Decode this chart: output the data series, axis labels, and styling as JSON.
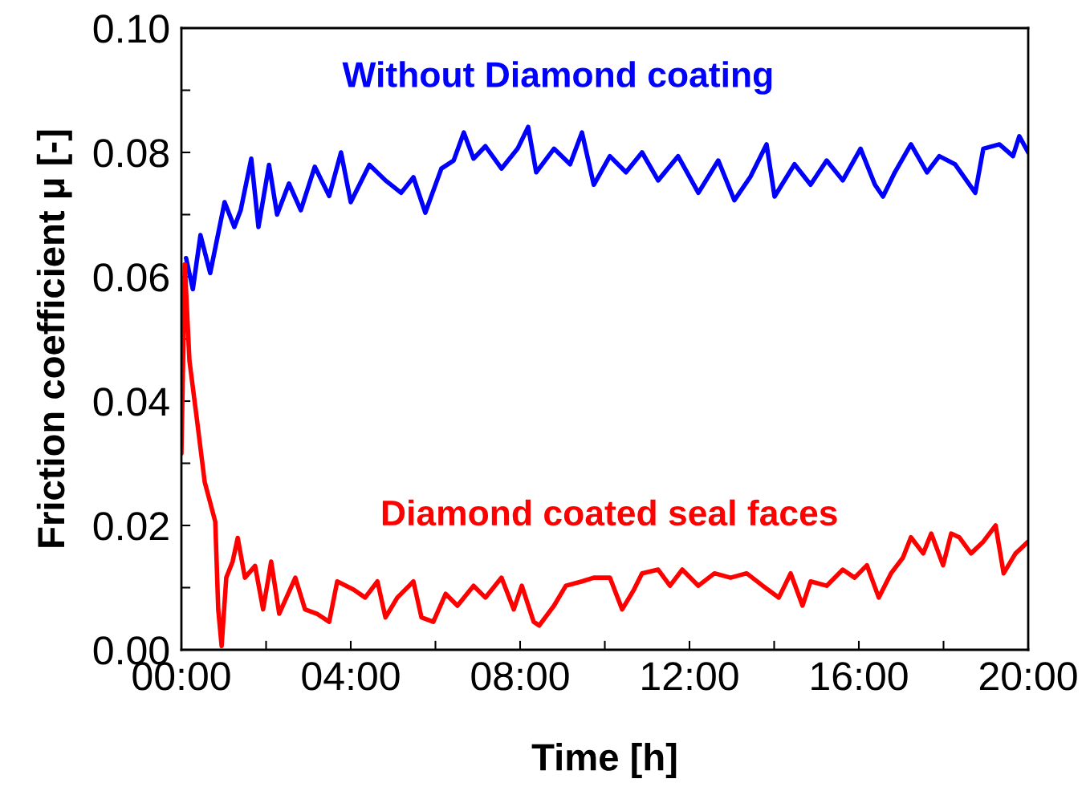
{
  "chart_data": {
    "type": "line",
    "xlabel": "Time [h]",
    "ylabel": "Friction coefficient μ [-]",
    "xlim": [
      0,
      20
    ],
    "ylim": [
      0,
      0.1
    ],
    "xticks": [
      {
        "value": 0,
        "label": "00:00"
      },
      {
        "value": 2,
        "label": null
      },
      {
        "value": 4,
        "label": "04:00"
      },
      {
        "value": 6,
        "label": null
      },
      {
        "value": 8,
        "label": "08:00"
      },
      {
        "value": 10,
        "label": null
      },
      {
        "value": 12,
        "label": "12:00"
      },
      {
        "value": 14,
        "label": null
      },
      {
        "value": 16,
        "label": "16:00"
      },
      {
        "value": 18,
        "label": null
      },
      {
        "value": 20,
        "label": "20:00"
      }
    ],
    "yticks": [
      {
        "value": 0,
        "label": "0.00"
      },
      {
        "value": 0.01,
        "label": null
      },
      {
        "value": 0.02,
        "label": "0.02"
      },
      {
        "value": 0.03,
        "label": null
      },
      {
        "value": 0.04,
        "label": "0.04"
      },
      {
        "value": 0.05,
        "label": null
      },
      {
        "value": 0.06,
        "label": "0.06"
      },
      {
        "value": 0.07,
        "label": null
      },
      {
        "value": 0.08,
        "label": "0.08"
      },
      {
        "value": 0.09,
        "label": null
      },
      {
        "value": 0.1,
        "label": "0.10"
      }
    ],
    "grid": false,
    "legend": false,
    "marker": "none",
    "line_style": "solid",
    "series": [
      {
        "name": "Without Diamond coating",
        "color": "#0000ff",
        "x": [
          0.11,
          0.27,
          0.45,
          0.68,
          1.02,
          1.25,
          1.4,
          1.65,
          1.82,
          2.07,
          2.26,
          2.54,
          2.82,
          3.15,
          3.49,
          3.77,
          4.0,
          4.44,
          4.82,
          5.19,
          5.48,
          5.76,
          6.14,
          6.43,
          6.67,
          6.9,
          7.18,
          7.56,
          7.94,
          8.19,
          8.38,
          8.8,
          9.18,
          9.46,
          9.74,
          10.12,
          10.5,
          10.88,
          11.26,
          11.73,
          12.21,
          12.68,
          13.06,
          13.44,
          13.82,
          14.01,
          14.48,
          14.86,
          15.24,
          15.62,
          16.04,
          16.38,
          16.57,
          16.85,
          17.23,
          17.61,
          17.9,
          18.27,
          18.75,
          18.94,
          19.32,
          19.64,
          19.79,
          20.0
        ],
        "values": [
          0.063,
          0.058,
          0.0667,
          0.0606,
          0.072,
          0.068,
          0.0707,
          0.079,
          0.068,
          0.078,
          0.07,
          0.075,
          0.0707,
          0.0777,
          0.073,
          0.08,
          0.072,
          0.078,
          0.0755,
          0.0735,
          0.076,
          0.0703,
          0.0774,
          0.0787,
          0.0832,
          0.079,
          0.081,
          0.0774,
          0.0806,
          0.0841,
          0.0768,
          0.0806,
          0.0781,
          0.0832,
          0.0748,
          0.0794,
          0.0768,
          0.08,
          0.0755,
          0.0794,
          0.0735,
          0.0787,
          0.0723,
          0.0761,
          0.0813,
          0.0729,
          0.0781,
          0.0748,
          0.0787,
          0.0755,
          0.0806,
          0.0748,
          0.0729,
          0.0768,
          0.0813,
          0.0768,
          0.0794,
          0.0781,
          0.0735,
          0.0806,
          0.0813,
          0.0794,
          0.0826,
          0.08
        ]
      },
      {
        "name": "Diamond coated seal faces",
        "color": "#ff0000",
        "x": [
          0,
          0.08,
          0.19,
          0.36,
          0.55,
          0.8,
          0.87,
          0.95,
          1.06,
          1.21,
          1.33,
          1.5,
          1.74,
          1.93,
          2.12,
          2.31,
          2.69,
          2.92,
          3.2,
          3.49,
          3.68,
          4.06,
          4.34,
          4.63,
          4.82,
          5.1,
          5.48,
          5.67,
          5.95,
          6.24,
          6.52,
          6.9,
          7.18,
          7.56,
          7.85,
          8.04,
          8.32,
          8.45,
          8.8,
          9.08,
          9.46,
          9.74,
          10.12,
          10.41,
          10.69,
          10.88,
          11.26,
          11.54,
          11.83,
          12.21,
          12.59,
          12.97,
          13.35,
          13.73,
          14.11,
          14.39,
          14.67,
          14.86,
          15.24,
          15.62,
          15.9,
          16.19,
          16.47,
          16.76,
          17.04,
          17.23,
          17.52,
          17.71,
          17.99,
          18.18,
          18.37,
          18.65,
          18.94,
          19.23,
          19.42,
          19.7,
          20.0
        ],
        "values": [
          0.0316,
          0.062,
          0.0465,
          0.0374,
          0.027,
          0.0206,
          0.0065,
          0.0006,
          0.0116,
          0.0142,
          0.018,
          0.0116,
          0.0135,
          0.0065,
          0.0142,
          0.0058,
          0.0116,
          0.0065,
          0.0058,
          0.0045,
          0.011,
          0.0097,
          0.0084,
          0.011,
          0.0052,
          0.0084,
          0.011,
          0.0052,
          0.0045,
          0.009,
          0.0071,
          0.0103,
          0.0084,
          0.0116,
          0.0065,
          0.0103,
          0.0045,
          0.0039,
          0.0071,
          0.0103,
          0.011,
          0.0116,
          0.0116,
          0.0065,
          0.0097,
          0.0123,
          0.0129,
          0.0103,
          0.0129,
          0.0103,
          0.0123,
          0.0116,
          0.0123,
          0.0103,
          0.0084,
          0.0123,
          0.0071,
          0.011,
          0.0103,
          0.0129,
          0.0116,
          0.0136,
          0.0084,
          0.0123,
          0.0148,
          0.0181,
          0.0155,
          0.0187,
          0.0136,
          0.0187,
          0.0181,
          0.0155,
          0.0174,
          0.02,
          0.0123,
          0.0155,
          0.0174
        ]
      }
    ]
  }
}
